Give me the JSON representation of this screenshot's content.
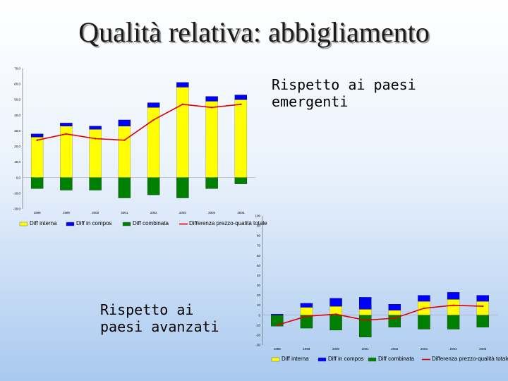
{
  "title": "Qualità relativa: abbigliamento",
  "captions": {
    "emergenti": "Rispetto ai paesi emergenti",
    "avanzati": "Rispetto ai paesi avanzati"
  },
  "colors": {
    "interna": "#ffff00",
    "compos": "#0000ff",
    "combinata": "#008000",
    "totale": "#e00000"
  },
  "chart_data": [
    {
      "type": "bar",
      "name": "emergenti",
      "categories": [
        "1998",
        "1999",
        "2000",
        "2001",
        "2002",
        "2003",
        "2004",
        "2005"
      ],
      "ylim": [
        -20,
        70
      ],
      "yticks": [
        "-20,0",
        "-10,0",
        "0,0",
        "10,0",
        "20,0",
        "30,0",
        "40,0",
        "50,0",
        "60,0",
        "70,0"
      ],
      "series": [
        {
          "name": "Diff interna",
          "values": [
            26,
            33,
            31,
            33,
            45,
            58,
            49,
            50
          ]
        },
        {
          "name": "Diff in compos",
          "values": [
            2,
            2,
            2,
            4,
            3,
            3,
            3,
            3
          ]
        },
        {
          "name": "Diff combinata",
          "values": [
            -7,
            -8,
            -8,
            -13,
            -11,
            -13,
            -7,
            -4
          ]
        },
        {
          "name": "Differenza prezzo-qualità totale",
          "values": [
            24,
            28,
            25,
            24,
            37,
            47,
            45,
            47
          ]
        }
      ]
    },
    {
      "type": "bar",
      "name": "avanzati",
      "categories": [
        "1998",
        "1999",
        "2000",
        "2001",
        "2002",
        "2003",
        "2004",
        "2005"
      ],
      "ylim": [
        -30,
        100
      ],
      "yticks": [
        "-30",
        "-20",
        "-10",
        "0",
        "10",
        "20",
        "30",
        "40",
        "50",
        "60",
        "70",
        "80",
        "90",
        "100"
      ],
      "series": [
        {
          "name": "Diff interna",
          "values": [
            0,
            8,
            9,
            6,
            5,
            14,
            16,
            14
          ]
        },
        {
          "name": "Diff in compos",
          "values": [
            1,
            4,
            8,
            12,
            6,
            6,
            7,
            6
          ]
        },
        {
          "name": "Diff combinata",
          "values": [
            -11,
            -13,
            -15,
            -22,
            -12,
            -14,
            -14,
            -12
          ]
        },
        {
          "name": "Differenza prezzo-qualità totale",
          "values": [
            -10,
            -1,
            1,
            -5,
            -3,
            7,
            10,
            9
          ]
        }
      ]
    }
  ]
}
